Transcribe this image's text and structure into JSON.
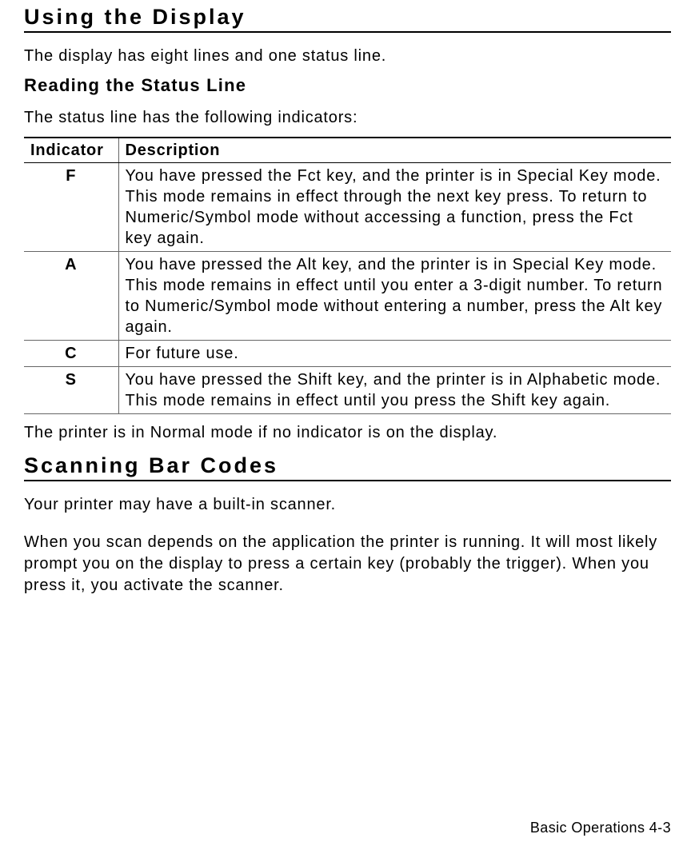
{
  "section1": {
    "title": "Using the Display",
    "intro": "The display has eight lines and one status line.",
    "subheading": "Reading the Status Line",
    "subintro": "The status line has the following indicators:"
  },
  "table": {
    "headers": {
      "indicator": "Indicator",
      "description": "Description"
    },
    "rows": [
      {
        "indicator": "F",
        "description": "You have pressed the Fct key, and the printer is in Special Key mode.  This mode remains in effect through the next key press.  To return to Numeric/Symbol mode without accessing a function, press the Fct key again."
      },
      {
        "indicator": "A",
        "description": "You have pressed the Alt key, and the printer is in Special Key mode.  This mode remains in effect until you enter a 3-digit number.  To return to Numeric/Symbol mode without entering a number, press the Alt key again."
      },
      {
        "indicator": "C",
        "description": "For future use."
      },
      {
        "indicator": "S",
        "description": "You have pressed the Shift key, and the printer is in Alphabetic mode.  This mode remains in effect until you press the Shift key again."
      }
    ],
    "footnote": "The printer is in Normal mode if no indicator is on the display."
  },
  "section2": {
    "title": "Scanning Bar Codes",
    "p1": "Your printer may have a built-in scanner.",
    "p2": "When you scan depends on the application the printer is running.  It will most likely prompt you on the display to press a certain key (probably the trigger).  When you press it, you activate the scanner."
  },
  "footer": "Basic Operations  4-3"
}
